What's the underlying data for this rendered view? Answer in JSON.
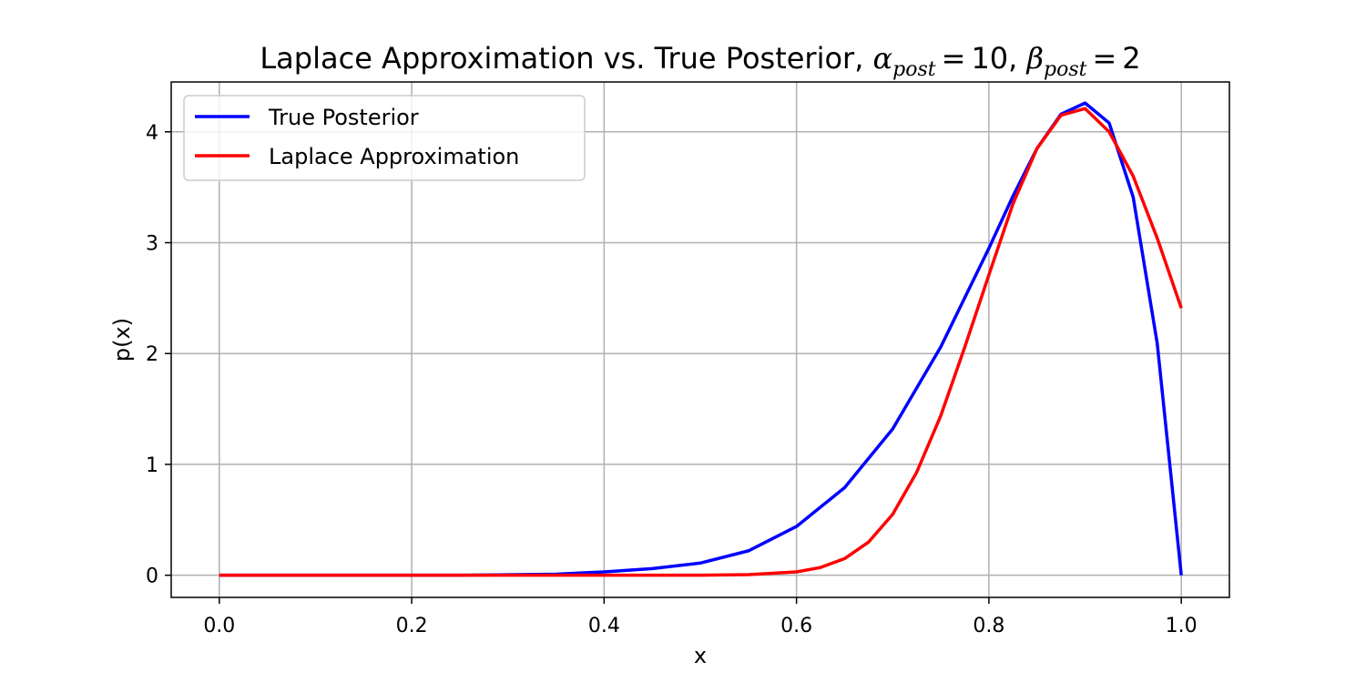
{
  "chart_data": {
    "type": "line",
    "title": {
      "prefix": "Laplace Approximation vs. True Posterior, ",
      "alpha_symbol": "α",
      "alpha_subscript": "post",
      "alpha_value": "10",
      "separator": ", ",
      "beta_symbol": "β",
      "beta_subscript": "post",
      "beta_value": "2",
      "equals": "="
    },
    "xlabel": "x",
    "ylabel": "p(x)",
    "xlim": [
      -0.05,
      1.05
    ],
    "ylim": [
      -0.2,
      4.45
    ],
    "xticks": [
      0.0,
      0.2,
      0.4,
      0.6,
      0.8,
      1.0
    ],
    "xtick_labels": [
      "0.0",
      "0.2",
      "0.4",
      "0.6",
      "0.8",
      "1.0"
    ],
    "yticks": [
      0,
      1,
      2,
      3,
      4
    ],
    "ytick_labels": [
      "0",
      "1",
      "2",
      "3",
      "4"
    ],
    "grid": true,
    "legend_position": "upper-left",
    "series": [
      {
        "name": "True Posterior",
        "color": "#0000ff",
        "x": [
          0.0,
          0.05,
          0.1,
          0.15,
          0.2,
          0.25,
          0.3,
          0.35,
          0.4,
          0.45,
          0.5,
          0.55,
          0.6,
          0.65,
          0.7,
          0.75,
          0.8,
          0.825,
          0.85,
          0.875,
          0.9,
          0.925,
          0.95,
          0.975,
          1.0
        ],
        "y": [
          0.0,
          0.0,
          0.0,
          0.0,
          0.0,
          0.0,
          0.004,
          0.01,
          0.03,
          0.06,
          0.11,
          0.22,
          0.44,
          0.79,
          1.32,
          2.06,
          2.95,
          3.42,
          3.85,
          4.16,
          4.26,
          4.08,
          3.41,
          2.09,
          0.0
        ]
      },
      {
        "name": "Laplace Approximation",
        "color": "#ff0000",
        "x": [
          0.0,
          0.05,
          0.1,
          0.15,
          0.2,
          0.25,
          0.3,
          0.35,
          0.4,
          0.45,
          0.5,
          0.55,
          0.6,
          0.625,
          0.65,
          0.675,
          0.7,
          0.725,
          0.75,
          0.775,
          0.8,
          0.825,
          0.85,
          0.875,
          0.9,
          0.925,
          0.95,
          0.975,
          1.0
        ],
        "y": [
          0.0,
          0.0,
          0.0,
          0.0,
          0.0,
          0.0,
          0.0,
          0.0,
          0.0,
          0.0,
          0.0,
          0.005,
          0.03,
          0.07,
          0.15,
          0.3,
          0.55,
          0.93,
          1.44,
          2.06,
          2.71,
          3.35,
          3.85,
          4.15,
          4.21,
          4.0,
          3.6,
          3.04,
          2.41
        ]
      }
    ]
  }
}
